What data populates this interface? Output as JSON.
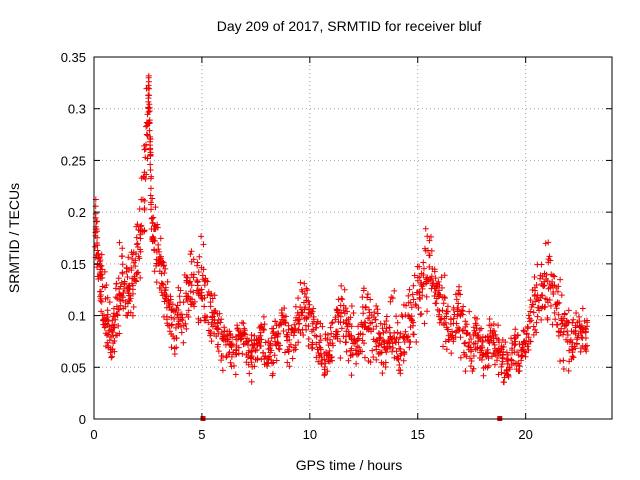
{
  "chart_data": {
    "type": "scatter",
    "title": "Day 209 of 2017, SRMTID for receiver bluf",
    "xlabel": "GPS time / hours",
    "ylabel": "SRMTID / TECUs",
    "xlim": [
      0,
      24
    ],
    "ylim": [
      0,
      0.35
    ],
    "xticks": [
      0,
      5,
      10,
      15,
      20
    ],
    "yticks": [
      0,
      0.05,
      0.1,
      0.15,
      0.2,
      0.25,
      0.3,
      0.35
    ],
    "grid": true,
    "marker": "+",
    "color": "#ee0000",
    "series": [
      {
        "name": "SRMTID",
        "x": [
          0.05,
          0.12,
          0.2,
          0.3,
          0.4,
          0.55,
          0.7,
          0.85,
          1.0,
          1.15,
          1.3,
          1.45,
          1.6,
          1.75,
          1.9,
          2.05,
          2.2,
          2.35,
          2.5,
          2.55,
          2.6,
          2.65,
          2.75,
          2.9,
          3.05,
          3.2,
          3.35,
          3.5,
          3.7,
          3.9,
          4.1,
          4.3,
          4.5,
          4.7,
          4.9,
          5.1,
          5.3,
          5.5,
          5.7,
          5.9,
          6.1,
          6.3,
          6.5,
          6.7,
          6.9,
          7.1,
          7.3,
          7.5,
          7.7,
          7.9,
          8.1,
          8.3,
          8.5,
          8.7,
          8.9,
          9.1,
          9.3,
          9.5,
          9.7,
          9.9,
          10.1,
          10.3,
          10.5,
          10.7,
          10.9,
          11.1,
          11.3,
          11.5,
          11.7,
          11.9,
          12.1,
          12.3,
          12.5,
          12.7,
          12.9,
          13.1,
          13.3,
          13.5,
          13.7,
          13.9,
          14.1,
          14.3,
          14.5,
          14.7,
          14.9,
          15.1,
          15.3,
          15.5,
          15.7,
          15.9,
          16.1,
          16.3,
          16.5,
          16.7,
          16.9,
          17.1,
          17.3,
          17.5,
          17.7,
          17.9,
          18.1,
          18.3,
          18.5,
          18.7,
          18.9,
          19.1,
          19.3,
          19.5,
          19.7,
          19.9,
          20.1,
          20.3,
          20.5,
          20.7,
          20.9,
          21.1,
          21.3,
          21.5,
          21.7,
          21.9,
          22.1,
          22.3,
          22.5,
          22.7
        ],
        "y": [
          0.19,
          0.18,
          0.15,
          0.13,
          0.12,
          0.1,
          0.09,
          0.08,
          0.1,
          0.12,
          0.14,
          0.13,
          0.12,
          0.13,
          0.14,
          0.16,
          0.19,
          0.23,
          0.3,
          0.32,
          0.26,
          0.2,
          0.17,
          0.16,
          0.15,
          0.14,
          0.12,
          0.1,
          0.09,
          0.1,
          0.11,
          0.12,
          0.13,
          0.14,
          0.13,
          0.12,
          0.11,
          0.1,
          0.09,
          0.08,
          0.07,
          0.07,
          0.06,
          0.07,
          0.08,
          0.07,
          0.06,
          0.07,
          0.08,
          0.07,
          0.06,
          0.07,
          0.08,
          0.09,
          0.08,
          0.07,
          0.09,
          0.1,
          0.11,
          0.1,
          0.09,
          0.08,
          0.07,
          0.06,
          0.07,
          0.08,
          0.09,
          0.1,
          0.09,
          0.08,
          0.07,
          0.08,
          0.09,
          0.1,
          0.09,
          0.08,
          0.07,
          0.08,
          0.09,
          0.08,
          0.07,
          0.08,
          0.09,
          0.1,
          0.11,
          0.13,
          0.14,
          0.15,
          0.14,
          0.12,
          0.1,
          0.09,
          0.08,
          0.09,
          0.1,
          0.09,
          0.08,
          0.07,
          0.08,
          0.07,
          0.06,
          0.07,
          0.08,
          0.07,
          0.06,
          0.05,
          0.06,
          0.07,
          0.06,
          0.07,
          0.08,
          0.1,
          0.11,
          0.12,
          0.13,
          0.14,
          0.12,
          0.1,
          0.09,
          0.08,
          0.07,
          0.08,
          0.09,
          0.08
        ],
        "spread": [
          0.03,
          0.03,
          0.035,
          0.035,
          0.035,
          0.035,
          0.03,
          0.03,
          0.035,
          0.04,
          0.045,
          0.045,
          0.045,
          0.04,
          0.04,
          0.045,
          0.045,
          0.045,
          0.03,
          0.02,
          0.035,
          0.04,
          0.045,
          0.045,
          0.04,
          0.04,
          0.04,
          0.035,
          0.03,
          0.03,
          0.035,
          0.04,
          0.045,
          0.045,
          0.045,
          0.04,
          0.04,
          0.035,
          0.03,
          0.03,
          0.025,
          0.025,
          0.025,
          0.025,
          0.025,
          0.025,
          0.025,
          0.025,
          0.025,
          0.025,
          0.025,
          0.025,
          0.03,
          0.03,
          0.03,
          0.03,
          0.035,
          0.035,
          0.04,
          0.035,
          0.03,
          0.03,
          0.025,
          0.025,
          0.025,
          0.03,
          0.035,
          0.035,
          0.035,
          0.03,
          0.03,
          0.035,
          0.04,
          0.045,
          0.04,
          0.035,
          0.03,
          0.03,
          0.035,
          0.035,
          0.035,
          0.035,
          0.04,
          0.04,
          0.045,
          0.045,
          0.045,
          0.045,
          0.04,
          0.04,
          0.035,
          0.035,
          0.03,
          0.035,
          0.035,
          0.035,
          0.03,
          0.03,
          0.03,
          0.025,
          0.025,
          0.025,
          0.03,
          0.03,
          0.025,
          0.02,
          0.02,
          0.025,
          0.025,
          0.03,
          0.035,
          0.04,
          0.04,
          0.04,
          0.045,
          0.045,
          0.04,
          0.04,
          0.035,
          0.03,
          0.03,
          0.03,
          0.03,
          0.03
        ]
      }
    ],
    "xaxis_markers": [
      5.05,
      18.8
    ]
  }
}
